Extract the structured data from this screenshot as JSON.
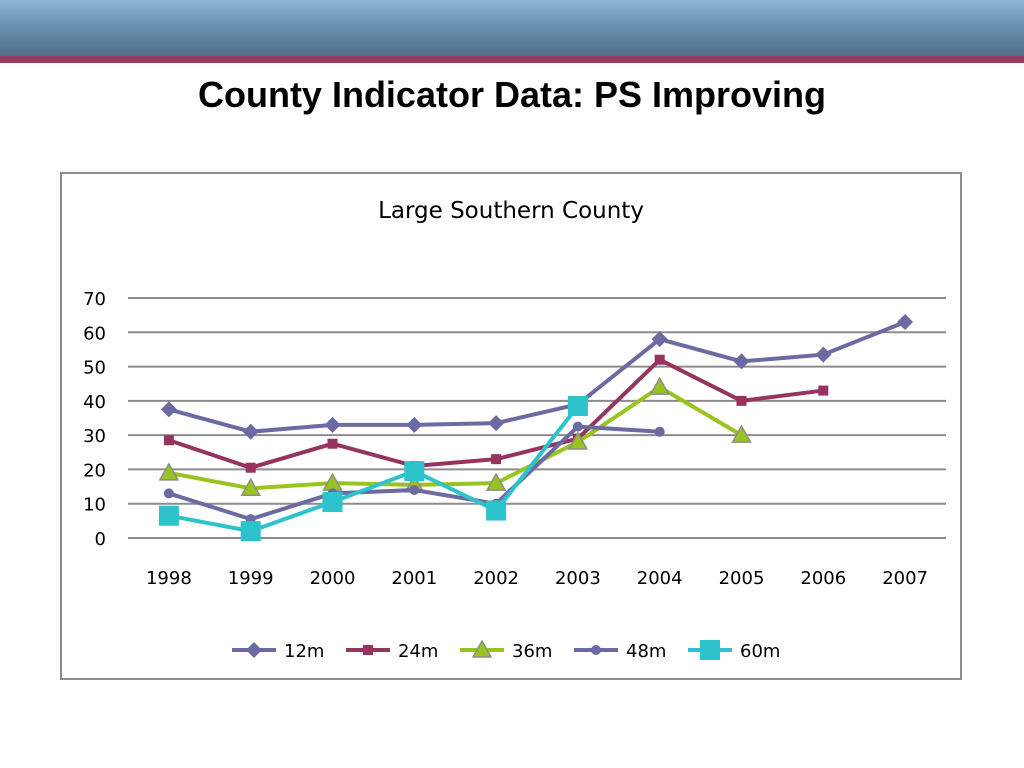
{
  "slide": {
    "title": "County Indicator Data: PS Improving"
  },
  "chart_data": {
    "type": "line",
    "title": "Large Southern County",
    "xlabel": "",
    "ylabel": "",
    "ylim": [
      0,
      70
    ],
    "yticks": [
      0,
      10,
      20,
      30,
      40,
      50,
      60,
      70
    ],
    "grid": true,
    "legend": "bottom",
    "categories": [
      "1998",
      "1999",
      "2000",
      "2001",
      "2002",
      "2003",
      "2004",
      "2005",
      "2006",
      "2007"
    ],
    "series": [
      {
        "name": "12m",
        "color": "#6b6aa3",
        "marker": "diamond",
        "values": [
          37.5,
          31,
          33,
          33,
          33.5,
          39,
          58,
          51.5,
          53.5,
          63
        ]
      },
      {
        "name": "24m",
        "color": "#96335e",
        "marker": "square-small",
        "values": [
          28.5,
          20.5,
          27.5,
          21,
          23,
          29,
          52,
          40,
          43,
          null
        ]
      },
      {
        "name": "36m",
        "color": "#99c31e",
        "marker": "triangle",
        "values": [
          19,
          14.5,
          16,
          15.5,
          16,
          28,
          44,
          30,
          null,
          null
        ]
      },
      {
        "name": "48m",
        "color": "#6b6aa3",
        "marker": "circle",
        "values": [
          13,
          5.5,
          13,
          14,
          10,
          32.5,
          31,
          null,
          null,
          null
        ]
      },
      {
        "name": "60m",
        "color": "#2dc3cc",
        "marker": "square-large",
        "values": [
          6.5,
          2,
          10.5,
          19.5,
          8,
          38.5,
          null,
          null,
          null,
          null
        ]
      }
    ]
  }
}
